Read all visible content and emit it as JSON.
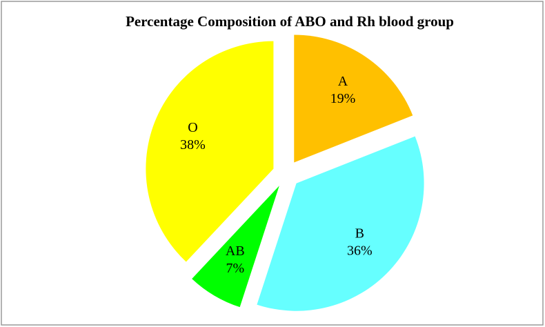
{
  "chart_data": {
    "type": "pie",
    "title": "Percentage Composition of ABO and Rh blood group",
    "categories": [
      "A",
      "B",
      "AB",
      "O"
    ],
    "values": [
      19,
      36,
      7,
      38
    ],
    "value_labels": [
      "19%",
      "36%",
      "7%",
      "38%"
    ],
    "colors": [
      "#ffc000",
      "#66ffff",
      "#00ff00",
      "#ffff00"
    ],
    "exploded": true
  }
}
